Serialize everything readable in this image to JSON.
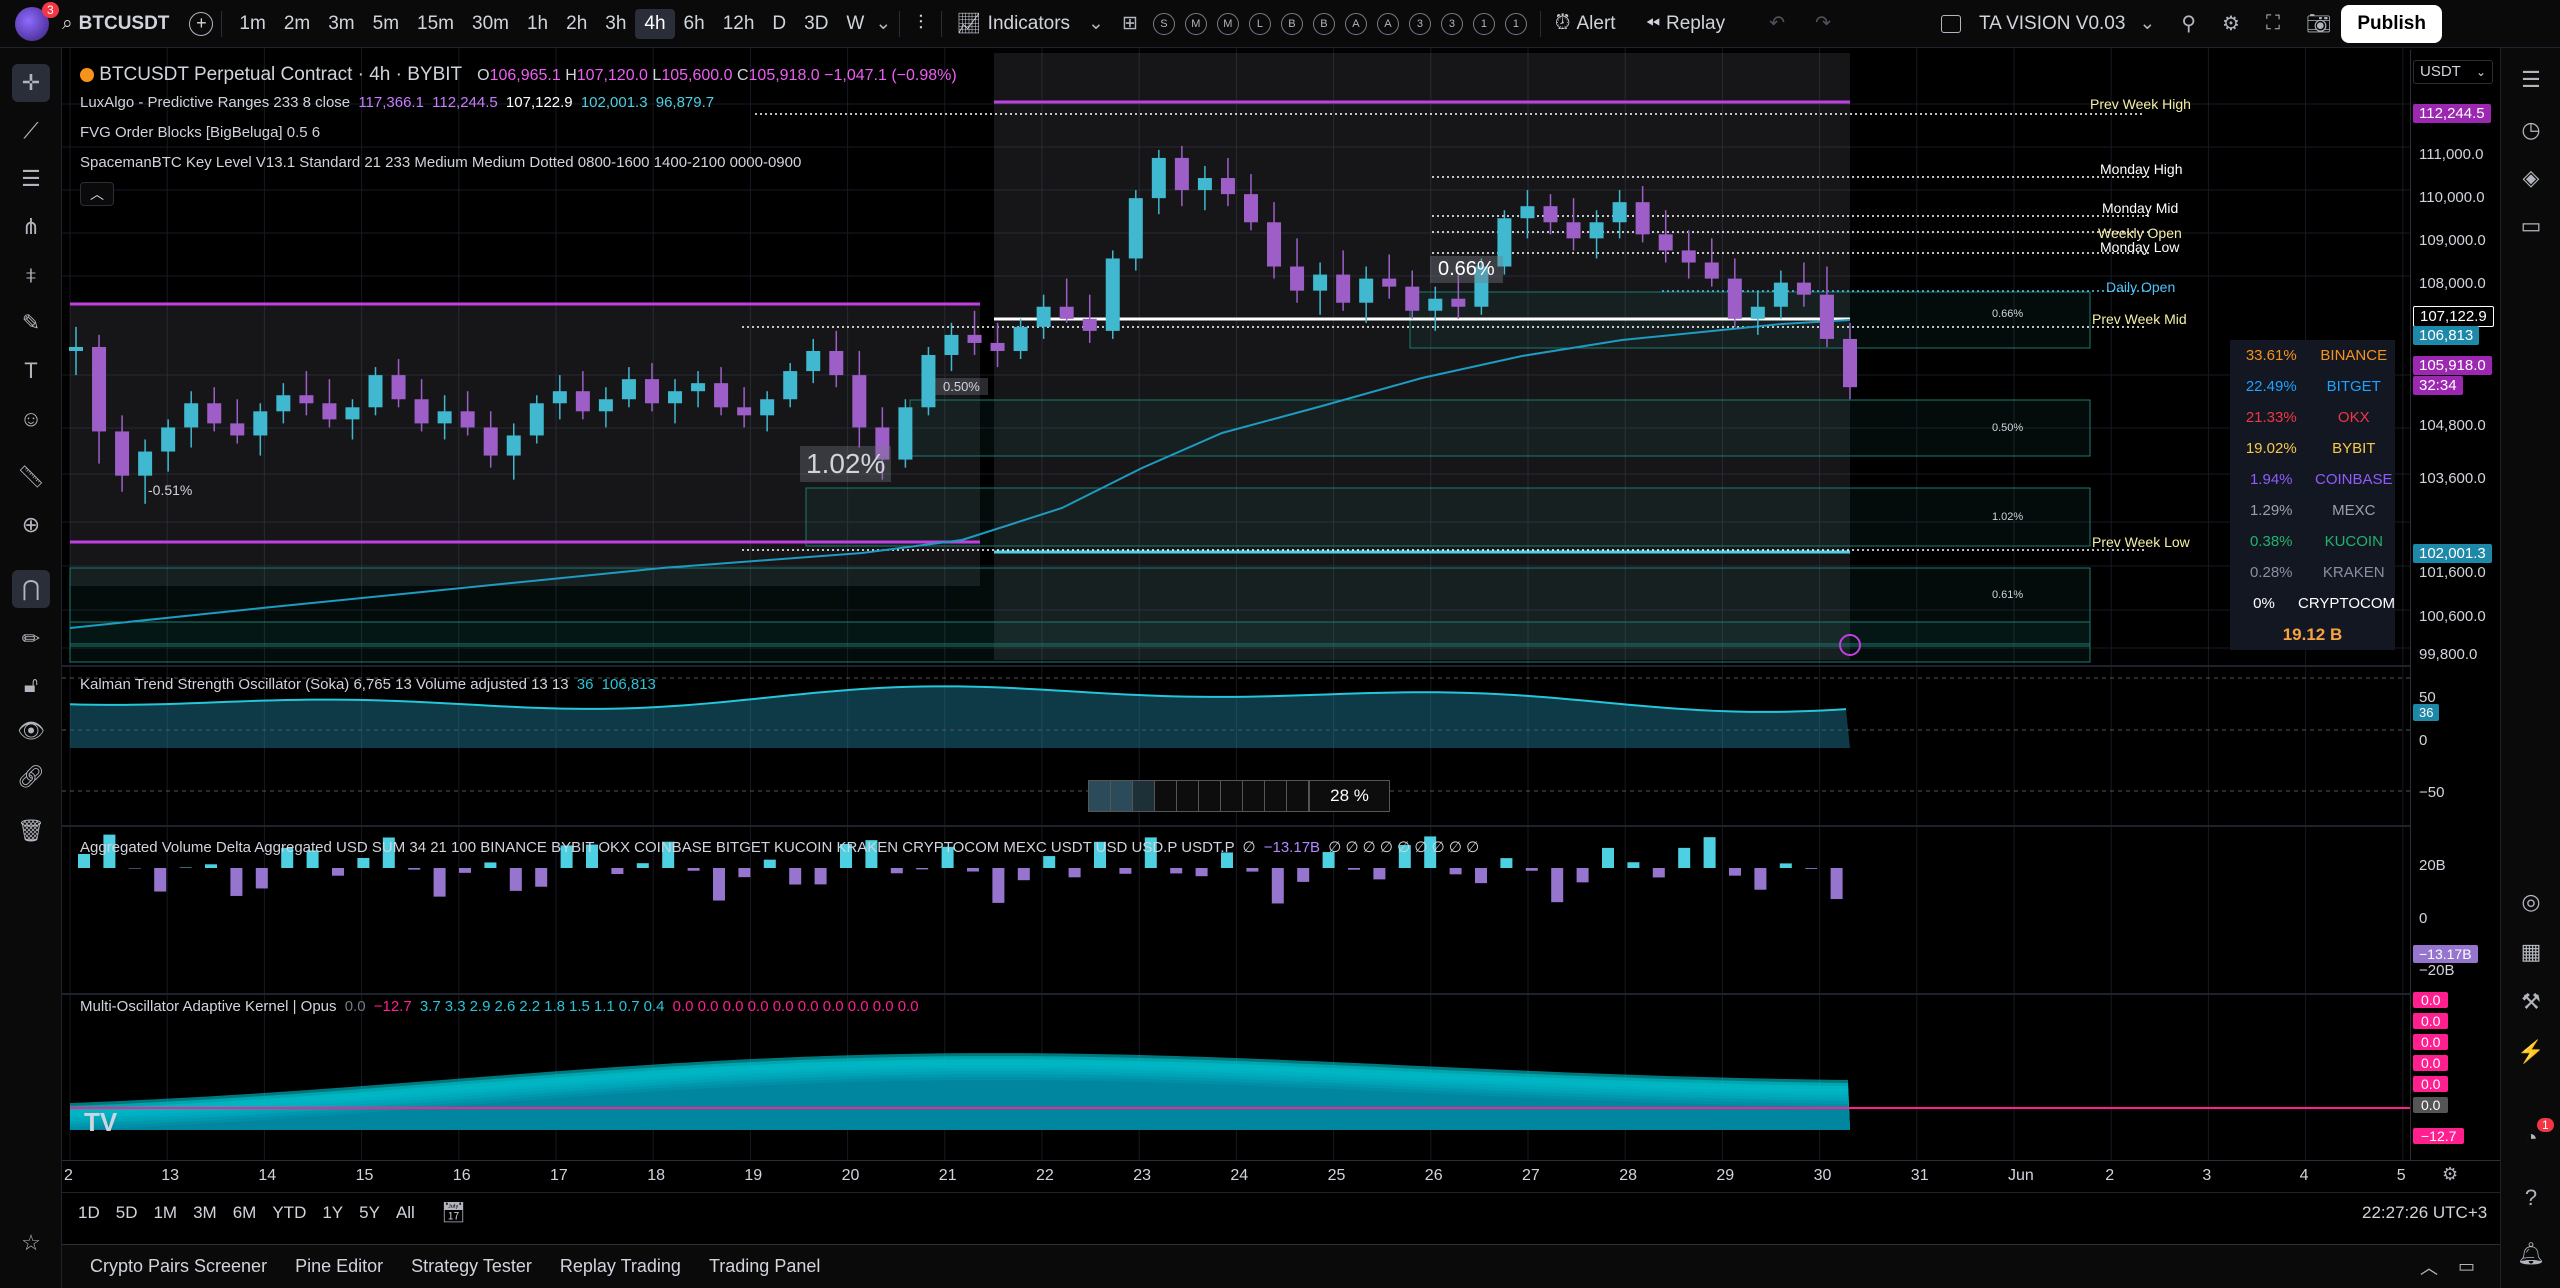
{
  "topbar": {
    "badge": "3",
    "symbol": "BTCUSDT",
    "intervals": [
      "1m",
      "2m",
      "3m",
      "5m",
      "15m",
      "30m",
      "1h",
      "2h",
      "3h",
      "4h",
      "6h",
      "12h",
      "D",
      "3D",
      "W"
    ],
    "active_interval": "4h",
    "indicators": "Indicators",
    "circles": [
      "S",
      "M",
      "M",
      "L",
      "B",
      "B",
      "A",
      "A",
      "3",
      "3",
      "1",
      "1"
    ],
    "alert": "Alert",
    "replay": "Replay",
    "layout_name": "TA VISION V0.03",
    "publish": "Publish"
  },
  "legends": {
    "main": {
      "title": "BTCUSDT Perpetual Contract · 4h · BYBIT",
      "o_label": "O",
      "o": "106,965.1",
      "h_label": "H",
      "h": "107,120.0",
      "l_label": "L",
      "l": "105,600.0",
      "c_label": "C",
      "c": "105,918.0",
      "chg": "−1,047.1 (−0.98%)"
    },
    "lux": {
      "name": "LuxAlgo - Predictive Ranges 233 8 close",
      "v1": "117,366.1",
      "v2": "112,244.5",
      "v3": "107,122.9",
      "v4": "102,001.3",
      "v5": "96,879.7"
    },
    "fvg": "FVG Order Blocks [BigBeluga] 0.5 6",
    "spaceman": "SpacemanBTC Key Level V13.1 Standard 21 233 Medium Medium Dotted 0800-1600 1400-2100 0000-0900",
    "kalman": {
      "name": "Kalman Trend Strength Oscillator (Soka) 6,765 13 Volume adjusted 13 13",
      "v1": "36",
      "v2": "106,813"
    },
    "avd": {
      "name": "Aggregated Volume Delta Aggregated USD SUM 34 21 100 BINANCE BYBIT OKX COINBASE BITGET KUCOIN KRAKEN CRYPTOCOM MEXC USDT USD USD.P USDT.P",
      "v0": "∅",
      "v1": "−13.17B",
      "v2": "∅ ∅ ∅ ∅ ∅ ∅ ∅ ∅ ∅"
    },
    "moak": {
      "name": "Multi-Oscillator Adaptive Kernel | Opus",
      "v0": "0.0",
      "v1": "−12.7",
      "vals": [
        "3.7",
        "3.3",
        "2.9",
        "2.6",
        "2.2",
        "1.8",
        "1.5",
        "1.1",
        "0.7",
        "0.4"
      ],
      "zeros": "0.0 0.0 0.0 0.0 0.0 0.0 0.0 0.0 0.0 0.0"
    }
  },
  "levels": {
    "prev_week_high": "Prev Week High",
    "monday_high": "Monday High",
    "monday_mid": "Monday Mid",
    "weekly_open": "Weekly Open",
    "monday_low": "Monday Low",
    "daily_open": "Daily Open",
    "prev_week_mid": "Prev Week Mid",
    "prev_week_low": "Prev Week Low"
  },
  "fvg_labels": {
    "a": "0.66%",
    "b": "0.50%",
    "c": "1.02%",
    "d": "0.61%",
    "big1": "1.02%",
    "big2": "0.66%",
    "small050": "0.50%",
    "neg051": "-0.51%"
  },
  "price_scale": {
    "currency": "USDT",
    "ticks": [
      "111,000.0",
      "110,000.0",
      "109,000.0",
      "108,000.0",
      "104,800.0",
      "103,600.0",
      "101,600.0",
      "100,600.0",
      "99,800.0"
    ],
    "tag_pwh": "112,244.5",
    "tag_107": "107,122.9",
    "tag_106": "106,813",
    "tag_last": "105,918.0",
    "tag_cd": "32:34",
    "tag_102": "102,001.3",
    "osc_ticks": [
      "50",
      "0",
      "−50"
    ],
    "osc_tag": "36",
    "avd_ticks": [
      "20B",
      "0",
      "−20B"
    ],
    "avd_tag": "−13.17B",
    "moak_tags": [
      "0.0",
      "0.0",
      "0.0",
      "0.0",
      "0.0",
      "0.0",
      "−12.7"
    ]
  },
  "exchanges": [
    {
      "pct": "33.61%",
      "name": "BINANCE",
      "color": "#f7931a"
    },
    {
      "pct": "22.49%",
      "name": "BITGET",
      "color": "#1da2ff"
    },
    {
      "pct": "21.33%",
      "name": "OKX",
      "color": "#f23645"
    },
    {
      "pct": "19.02%",
      "name": "BYBIT",
      "color": "#f7c948"
    },
    {
      "pct": "1.94%",
      "name": "COINBASE",
      "color": "#8e5cff"
    },
    {
      "pct": "1.29%",
      "name": "MEXC",
      "color": "#9aa0aa"
    },
    {
      "pct": "0.38%",
      "name": "KUCOIN",
      "color": "#23b26d"
    },
    {
      "pct": "0.28%",
      "name": "KRAKEN",
      "color": "#8a8ea0"
    },
    {
      "pct": "0%",
      "name": "CRYPTOCOM",
      "color": "#ffffff"
    }
  ],
  "exchange_total": "19.12 B",
  "strength": "28 %",
  "time_axis": [
    "2",
    "13",
    "14",
    "15",
    "16",
    "17",
    "18",
    "19",
    "20",
    "21",
    "22",
    "23",
    "24",
    "25",
    "26",
    "27",
    "28",
    "29",
    "30",
    "31",
    "Jun",
    "2",
    "3",
    "4",
    "5"
  ],
  "ranges": [
    "1D",
    "5D",
    "1M",
    "3M",
    "6M",
    "YTD",
    "1Y",
    "5Y",
    "All"
  ],
  "clock": "22:27:26 UTC+3",
  "bottom_tabs": [
    "Crypto Pairs Screener",
    "Pine Editor",
    "Strategy Tester",
    "Replay Trading",
    "Trading Panel"
  ],
  "right_badge": "1",
  "candles": [
    [
      106800,
      107400,
      106200,
      106900
    ],
    [
      106900,
      107200,
      104000,
      104800
    ],
    [
      104800,
      105200,
      103300,
      103700
    ],
    [
      103700,
      104600,
      103000,
      104300
    ],
    [
      104300,
      105100,
      103800,
      104900
    ],
    [
      104900,
      105800,
      104400,
      105500
    ],
    [
      105500,
      105900,
      104800,
      105000
    ],
    [
      105000,
      105600,
      104500,
      104700
    ],
    [
      104700,
      105500,
      104200,
      105300
    ],
    [
      105300,
      106000,
      105000,
      105700
    ],
    [
      105700,
      106300,
      105200,
      105500
    ],
    [
      105500,
      106100,
      104900,
      105100
    ],
    [
      105100,
      105600,
      104600,
      105400
    ],
    [
      105400,
      106400,
      105200,
      106200
    ],
    [
      106200,
      106600,
      105400,
      105600
    ],
    [
      105600,
      106100,
      104800,
      105000
    ],
    [
      105000,
      105700,
      104600,
      105300
    ],
    [
      105300,
      105800,
      104700,
      104900
    ],
    [
      104900,
      105300,
      103900,
      104200
    ],
    [
      104200,
      105000,
      103600,
      104700
    ],
    [
      104700,
      105700,
      104500,
      105500
    ],
    [
      105500,
      106200,
      105100,
      105800
    ],
    [
      105800,
      106300,
      105100,
      105300
    ],
    [
      105300,
      105900,
      104900,
      105600
    ],
    [
      105600,
      106400,
      105400,
      106100
    ],
    [
      106100,
      106500,
      105300,
      105500
    ],
    [
      105500,
      106100,
      105000,
      105800
    ],
    [
      105800,
      106300,
      105400,
      106000
    ],
    [
      106000,
      106400,
      105200,
      105400
    ],
    [
      105400,
      105900,
      104900,
      105200
    ],
    [
      105200,
      105800,
      104800,
      105600
    ],
    [
      105600,
      106500,
      105400,
      106300
    ],
    [
      106300,
      107100,
      106000,
      106800
    ],
    [
      106800,
      107300,
      105900,
      106200
    ],
    [
      106200,
      106800,
      104400,
      104900
    ],
    [
      104900,
      105400,
      103600,
      104100
    ],
    [
      104100,
      105600,
      103900,
      105400
    ],
    [
      105400,
      106900,
      105200,
      106700
    ],
    [
      106700,
      107500,
      106300,
      107200
    ],
    [
      107200,
      107800,
      106700,
      107000
    ],
    [
      107000,
      107500,
      106400,
      106800
    ],
    [
      106800,
      107600,
      106600,
      107400
    ],
    [
      107400,
      108200,
      107100,
      107900
    ],
    [
      107900,
      108600,
      107500,
      107600
    ],
    [
      107600,
      108200,
      107000,
      107300
    ],
    [
      107300,
      109300,
      107100,
      109100
    ],
    [
      109100,
      110800,
      108800,
      110600
    ],
    [
      110600,
      111800,
      110200,
      111600
    ],
    [
      111600,
      111900,
      110400,
      110800
    ],
    [
      110800,
      111400,
      110300,
      111100
    ],
    [
      111100,
      111600,
      110400,
      110700
    ],
    [
      110700,
      111200,
      109800,
      110000
    ],
    [
      110000,
      110500,
      108600,
      108900
    ],
    [
      108900,
      109600,
      108000,
      108300
    ],
    [
      108300,
      109000,
      107700,
      108700
    ],
    [
      108700,
      109300,
      107800,
      108000
    ],
    [
      108000,
      108900,
      107500,
      108600
    ],
    [
      108600,
      109200,
      108100,
      108400
    ],
    [
      108400,
      108800,
      107600,
      107800
    ],
    [
      107800,
      108400,
      107300,
      108100
    ],
    [
      108100,
      108700,
      107600,
      107900
    ],
    [
      107900,
      109100,
      107700,
      108900
    ],
    [
      108900,
      110300,
      108700,
      110100
    ],
    [
      110100,
      110800,
      109600,
      110400
    ],
    [
      110400,
      110700,
      109700,
      110000
    ],
    [
      110000,
      110600,
      109300,
      109600
    ],
    [
      109600,
      110300,
      109100,
      110000
    ],
    [
      110000,
      110800,
      109600,
      110500
    ],
    [
      110500,
      110900,
      109500,
      109700
    ],
    [
      109700,
      110300,
      109000,
      109300
    ],
    [
      109300,
      109800,
      108600,
      109000
    ],
    [
      109000,
      109600,
      108400,
      108600
    ],
    [
      108600,
      109100,
      107400,
      107600
    ],
    [
      107600,
      108300,
      107200,
      107900
    ],
    [
      107900,
      108800,
      107600,
      108500
    ],
    [
      108500,
      109000,
      107900,
      108200
    ],
    [
      108200,
      108900,
      106900,
      107100
    ],
    [
      107100,
      107500,
      105600,
      105900
    ]
  ]
}
